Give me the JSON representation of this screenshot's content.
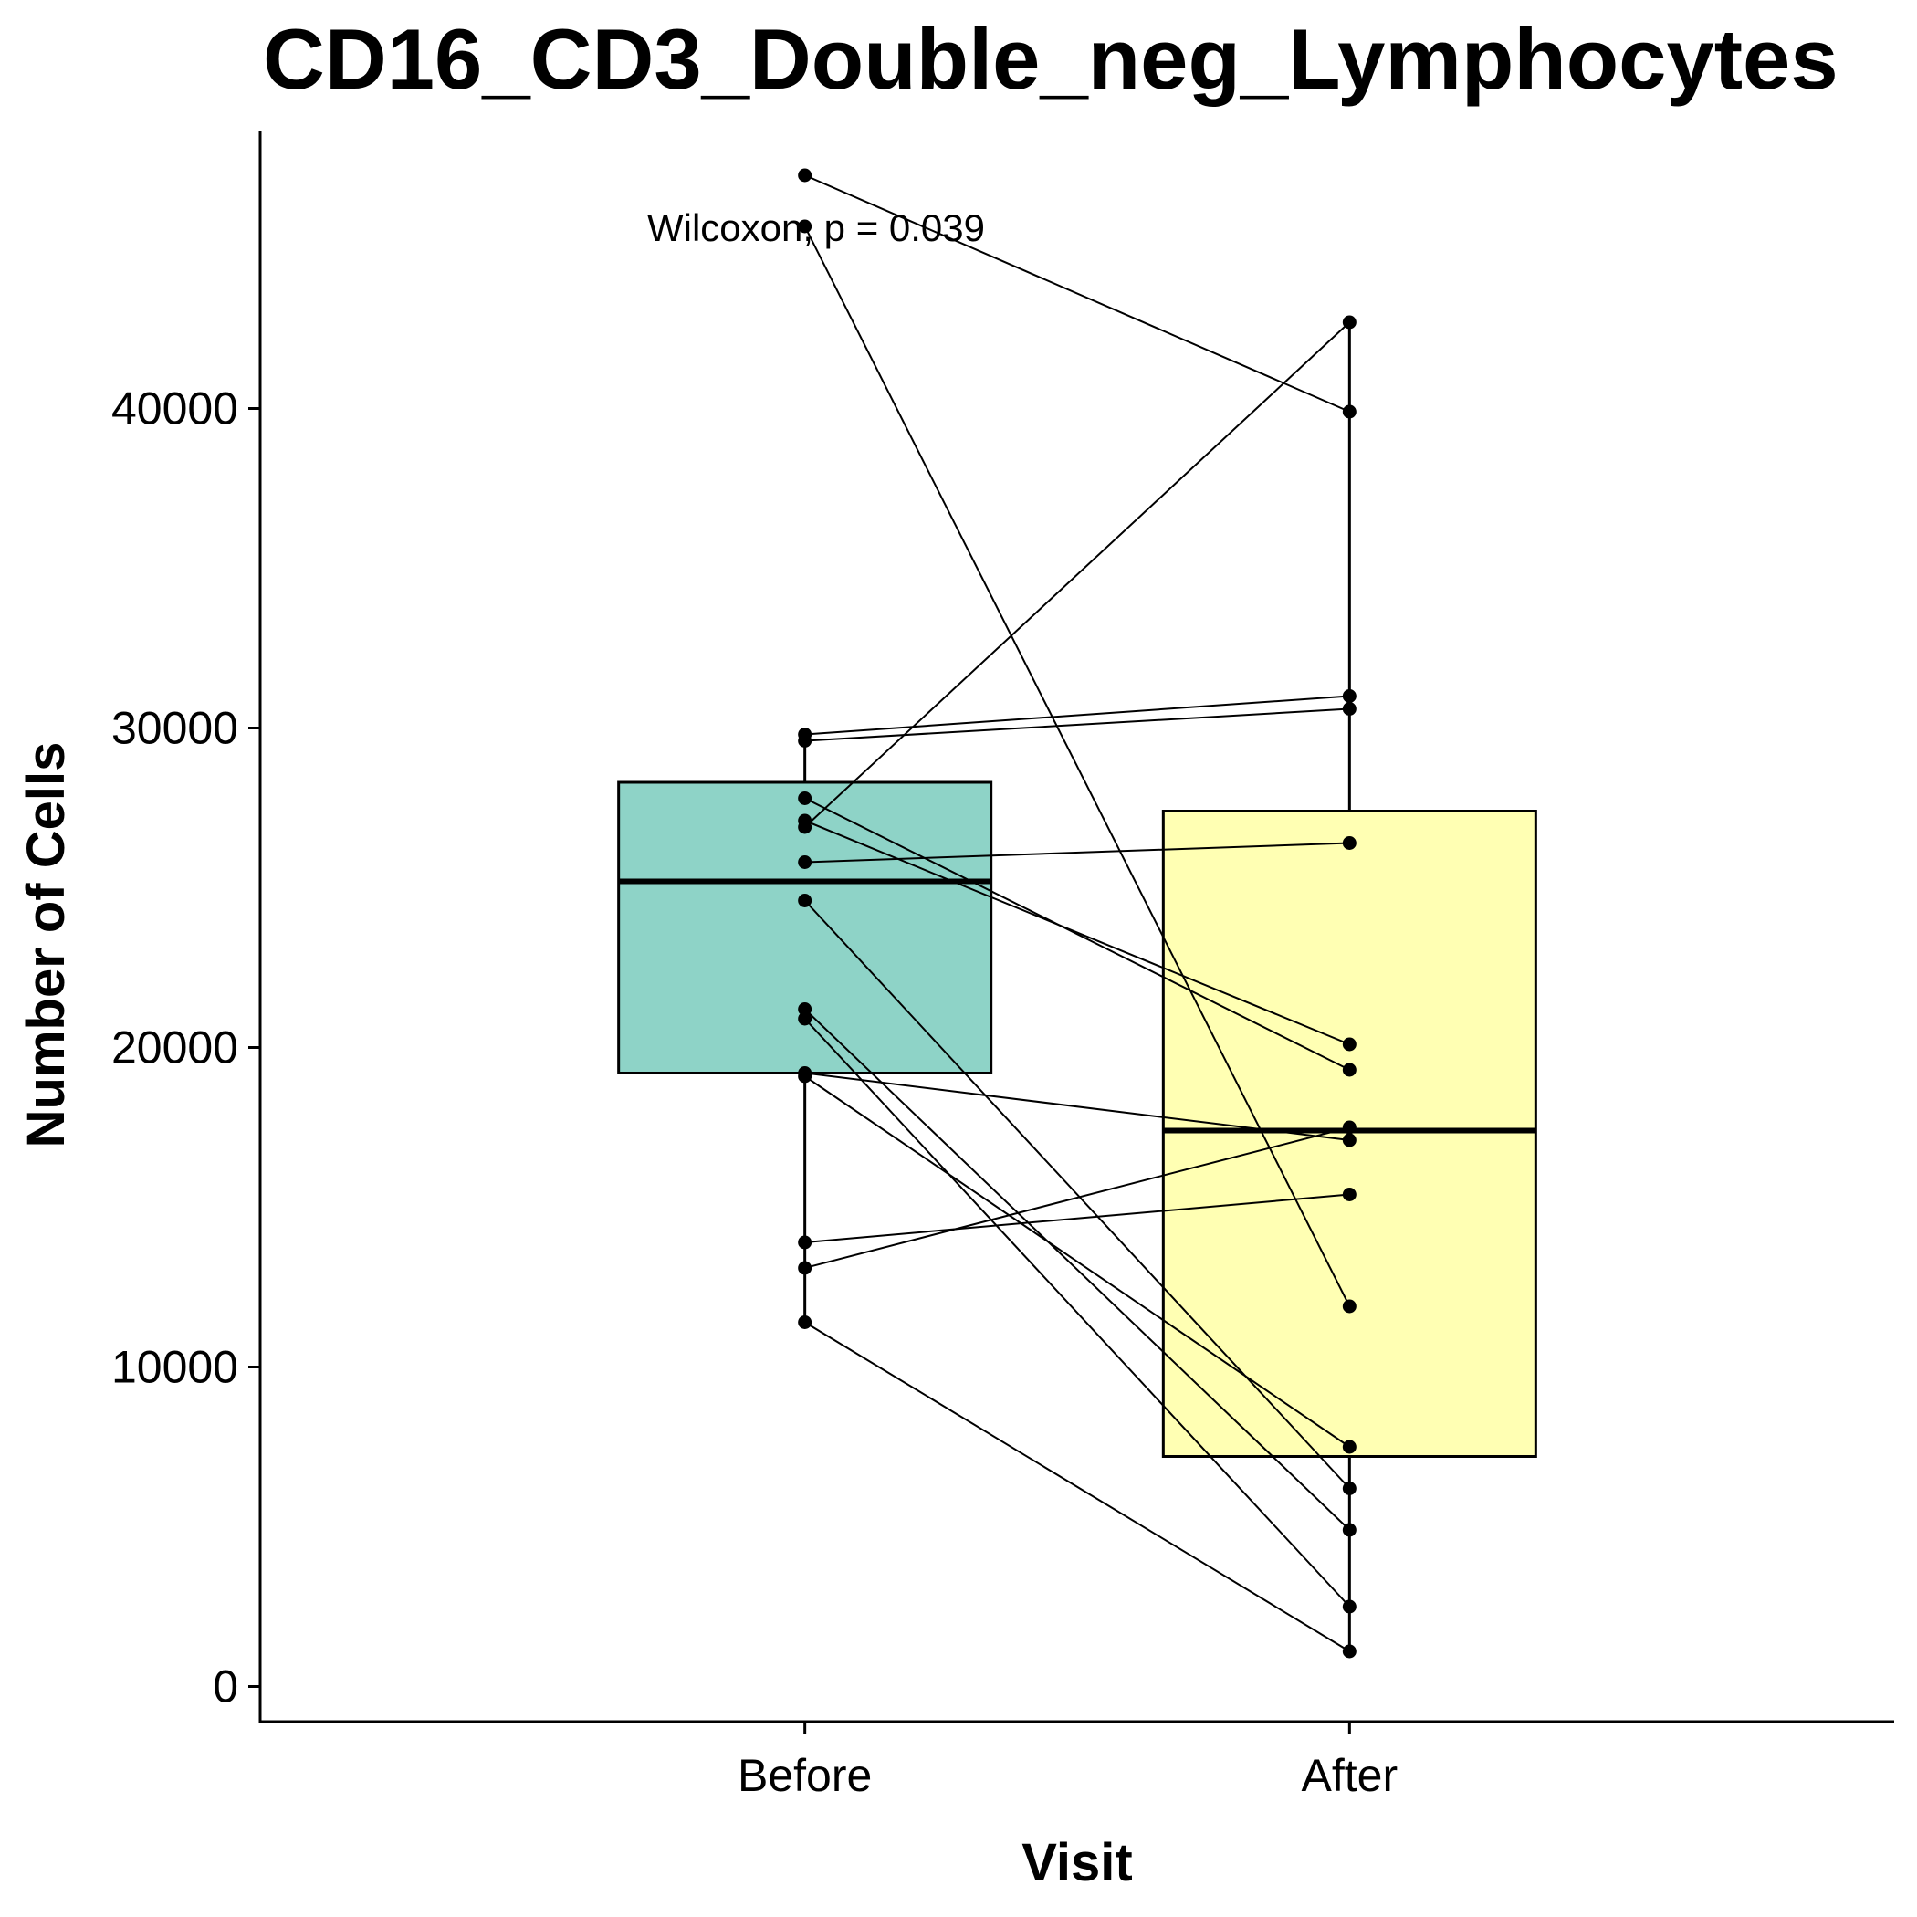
{
  "chart_data": {
    "type": "box",
    "title": "CD16_CD3_Double_neg_Lymphocytes",
    "xlabel": "Visit",
    "ylabel": "Number of Cells",
    "categories": [
      "Before",
      "After"
    ],
    "ylim": [
      -1100,
      48700
    ],
    "yticks": [
      0,
      10000,
      20000,
      30000,
      40000
    ],
    "ytick_labels": [
      "0",
      "10000",
      "20000",
      "30000",
      "40000"
    ],
    "grid": false,
    "legend": "none",
    "annotation": "Wilcoxon, p = 0.039",
    "boxes": [
      {
        "category": "Before",
        "fill": "#8ED3C7",
        "whisker_low": 11400,
        "q1": 19200,
        "median": 25200,
        "q3": 28300,
        "whisker_high": 29800
      },
      {
        "category": "After",
        "fill": "#FFFFB3",
        "whisker_low": 1100,
        "q1": 7200,
        "median": 17400,
        "q3": 27400,
        "whisker_high": 42700
      }
    ],
    "pairs": [
      {
        "before": 47300,
        "after": 39900
      },
      {
        "before": 45700,
        "after": 11900
      },
      {
        "before": 29800,
        "after": 31000
      },
      {
        "before": 29600,
        "after": 30600
      },
      {
        "before": 27800,
        "after": 19300
      },
      {
        "before": 27100,
        "after": 20100
      },
      {
        "before": 26900,
        "after": 42700
      },
      {
        "before": 25800,
        "after": 26400
      },
      {
        "before": 24600,
        "after": 6200
      },
      {
        "before": 21200,
        "after": 4900
      },
      {
        "before": 20900,
        "after": 2500
      },
      {
        "before": 19200,
        "after": 17100
      },
      {
        "before": 19100,
        "after": 7500
      },
      {
        "before": 13900,
        "after": 15400
      },
      {
        "before": 13100,
        "after": 17500
      },
      {
        "before": 11400,
        "after": 1100
      }
    ],
    "point_color": "#000000"
  }
}
